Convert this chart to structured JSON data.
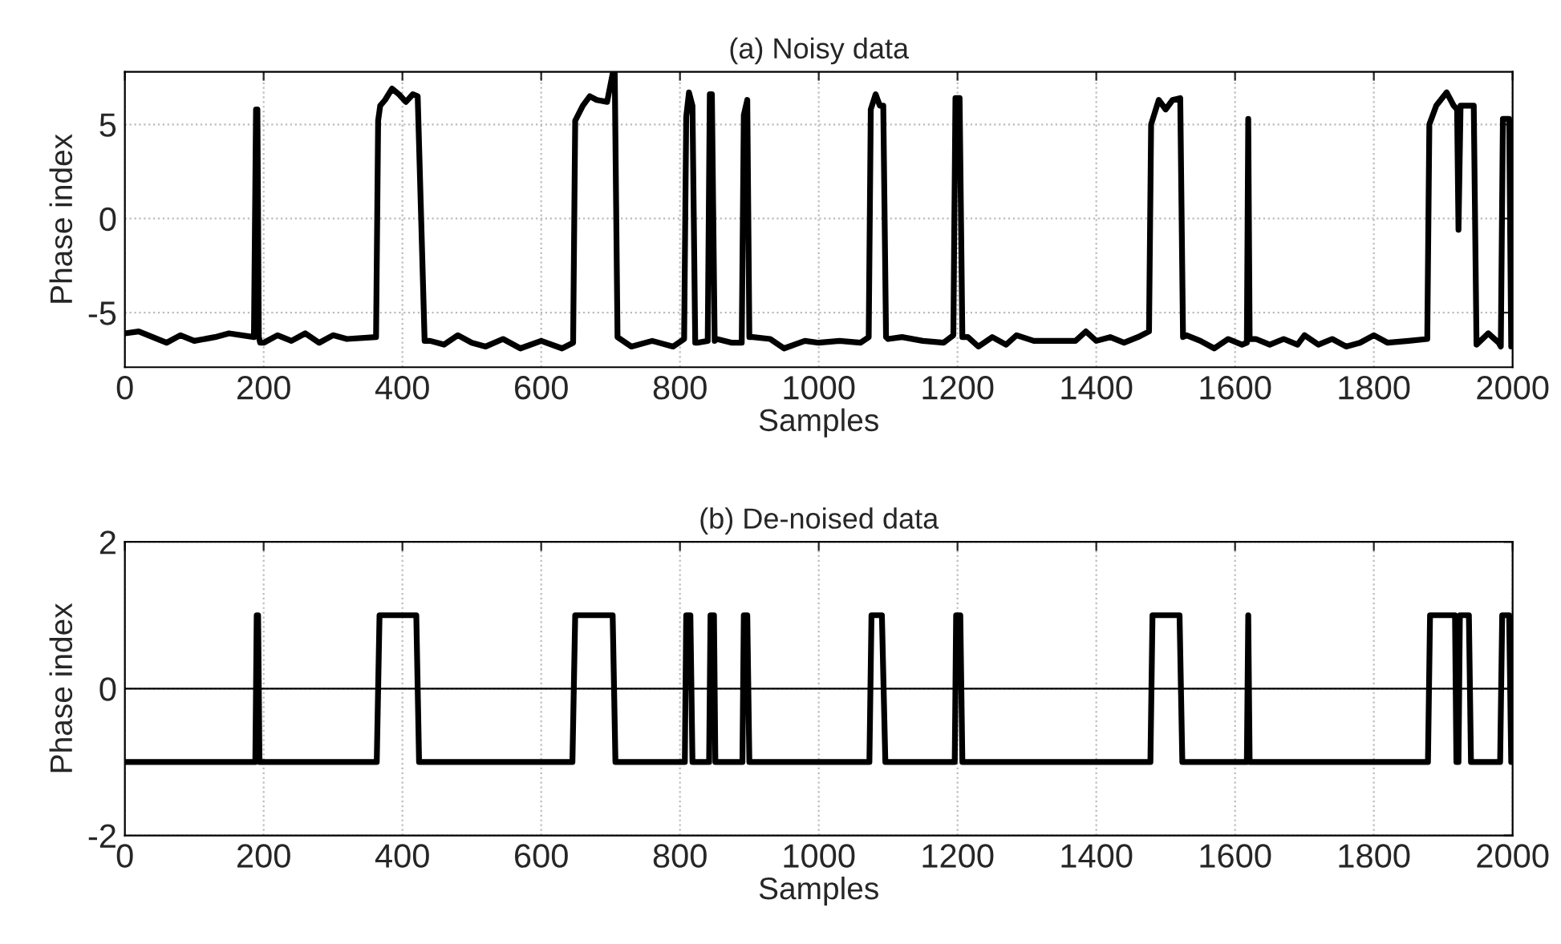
{
  "chart_data": [
    {
      "type": "line",
      "title": "(a) Noisy data",
      "xlabel": "Samples",
      "ylabel": "Phase index",
      "xlim": [
        0,
        2000
      ],
      "xticks": [
        0,
        200,
        400,
        600,
        800,
        1000,
        1200,
        1400,
        1600,
        1800,
        2000
      ],
      "ylim": [
        -7.9,
        7.8
      ],
      "yticks": [
        -5,
        0,
        5
      ],
      "grid": true,
      "line_style": "solid",
      "series": [
        {
          "color": "#000000",
          "x": [
            0,
            20,
            40,
            60,
            80,
            100,
            130,
            150,
            186,
            189,
            191,
            193,
            195,
            200,
            220,
            240,
            260,
            280,
            300,
            320,
            362,
            365,
            368,
            375,
            385,
            395,
            405,
            415,
            422,
            432,
            440,
            460,
            480,
            500,
            520,
            545,
            570,
            600,
            630,
            646,
            649,
            660,
            670,
            680,
            695,
            703,
            706,
            710,
            730,
            760,
            790,
            806,
            809,
            813,
            818,
            822,
            825,
            840,
            843,
            846,
            850,
            853,
            875,
            889,
            892,
            897,
            900,
            905,
            930,
            950,
            980,
            1000,
            1030,
            1060,
            1072,
            1075,
            1082,
            1088,
            1093,
            1097,
            1100,
            1120,
            1150,
            1180,
            1194,
            1197,
            1203,
            1207,
            1215,
            1230,
            1250,
            1270,
            1285,
            1310,
            1340,
            1370,
            1385,
            1400,
            1420,
            1440,
            1460,
            1476,
            1479,
            1490,
            1500,
            1510,
            1521,
            1525,
            1530,
            1550,
            1570,
            1590,
            1610,
            1617,
            1619,
            1621,
            1630,
            1650,
            1670,
            1690,
            1700,
            1720,
            1740,
            1760,
            1780,
            1800,
            1820,
            1850,
            1877,
            1880,
            1890,
            1905,
            1915,
            1920,
            1922,
            1925,
            1935,
            1944,
            1948,
            1965,
            1980,
            1983,
            1986,
            1995,
            1998,
            2000
          ],
          "values": [
            -6.1,
            -6.0,
            -6.3,
            -6.6,
            -6.2,
            -6.5,
            -6.3,
            -6.1,
            -6.3,
            5.8,
            5.8,
            -6.3,
            -6.6,
            -6.6,
            -6.2,
            -6.5,
            -6.1,
            -6.6,
            -6.2,
            -6.4,
            -6.3,
            5.2,
            6.0,
            6.3,
            6.9,
            6.6,
            6.2,
            6.6,
            6.5,
            -6.5,
            -6.5,
            -6.7,
            -6.2,
            -6.6,
            -6.8,
            -6.4,
            -6.9,
            -6.5,
            -6.9,
            -6.6,
            5.2,
            6.0,
            6.5,
            6.3,
            6.2,
            7.7,
            7.7,
            -6.3,
            -6.8,
            -6.5,
            -6.8,
            -6.4,
            5.4,
            6.7,
            6.0,
            -6.6,
            -6.6,
            -6.5,
            6.6,
            6.6,
            -6.5,
            -6.4,
            -6.6,
            -6.6,
            5.5,
            6.3,
            -6.3,
            -6.3,
            -6.4,
            -6.9,
            -6.5,
            -6.6,
            -6.5,
            -6.6,
            -6.3,
            5.8,
            6.6,
            6.0,
            6.0,
            -6.3,
            -6.4,
            -6.3,
            -6.5,
            -6.6,
            -6.2,
            6.4,
            6.4,
            -6.3,
            -6.3,
            -6.8,
            -6.3,
            -6.7,
            -6.2,
            -6.5,
            -6.5,
            -6.5,
            -6.0,
            -6.5,
            -6.3,
            -6.6,
            -6.3,
            -6.0,
            5.0,
            6.3,
            5.8,
            6.3,
            6.4,
            -6.3,
            -6.2,
            -6.5,
            -6.9,
            -6.4,
            -6.7,
            -6.6,
            5.3,
            -6.4,
            -6.4,
            -6.7,
            -6.4,
            -6.7,
            -6.2,
            -6.7,
            -6.4,
            -6.8,
            -6.6,
            -6.2,
            -6.6,
            -6.5,
            -6.4,
            5.0,
            6.0,
            6.7,
            6.0,
            5.8,
            -0.6,
            6.0,
            6.0,
            6.0,
            -6.7,
            -6.1,
            -6.6,
            -6.8,
            5.3,
            5.3,
            -6.8,
            -6.8
          ]
        }
      ]
    },
    {
      "type": "line",
      "title": "(b) De-noised data",
      "xlabel": "Samples",
      "ylabel": "Phase index",
      "xlim": [
        0,
        2000
      ],
      "xticks": [
        0,
        200,
        400,
        600,
        800,
        1000,
        1200,
        1400,
        1600,
        1800,
        2000
      ],
      "ylim": [
        -2,
        2
      ],
      "yticks": [
        -2,
        0,
        2
      ],
      "grid": true,
      "line_style": "solid",
      "ref_lines": [
        {
          "axis": "y",
          "value": 0,
          "color": "#000000"
        }
      ],
      "series": [
        {
          "color": "#000000",
          "x": [
            0,
            188,
            190,
            192,
            194,
            363,
            367,
            420,
            424,
            645,
            649,
            703,
            707,
            807,
            809,
            815,
            818,
            842,
            844,
            849,
            851,
            890,
            892,
            897,
            900,
            1073,
            1076,
            1091,
            1096,
            1196,
            1198,
            1204,
            1207,
            1478,
            1481,
            1520,
            1524,
            1617,
            1619,
            1621,
            1878,
            1881,
            1917,
            1919,
            1922,
            1924,
            1937,
            1940,
            1982,
            1985,
            1995,
            1998,
            2000
          ],
          "values": [
            -1,
            -1,
            1,
            1,
            -1,
            -1,
            1,
            1,
            -1,
            -1,
            1,
            1,
            -1,
            -1,
            1,
            1,
            -1,
            -1,
            1,
            1,
            -1,
            -1,
            1,
            1,
            -1,
            -1,
            1,
            1,
            -1,
            -1,
            1,
            1,
            -1,
            -1,
            1,
            1,
            -1,
            -1,
            1,
            -1,
            -1,
            1,
            1,
            -1,
            -1,
            1,
            1,
            -1,
            -1,
            1,
            1,
            -1,
            -1
          ]
        }
      ]
    }
  ]
}
